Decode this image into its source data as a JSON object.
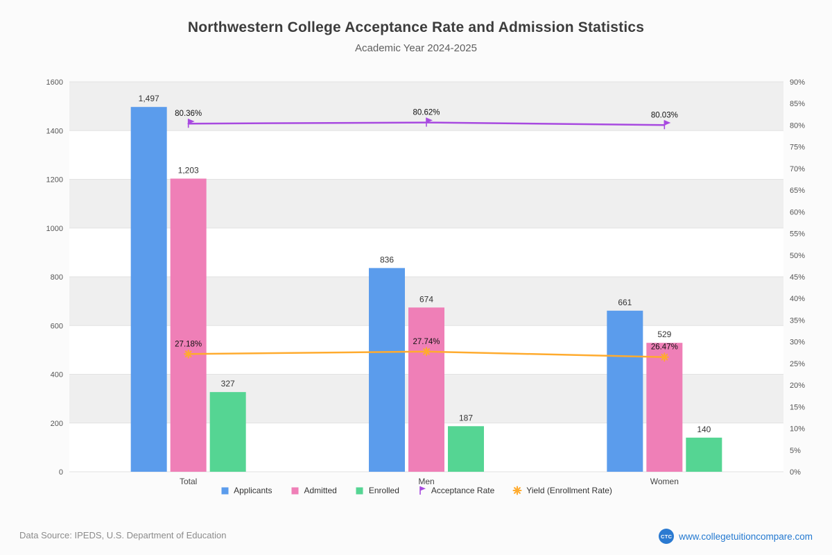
{
  "header": {
    "title": "Northwestern College Acceptance Rate and Admission Statistics",
    "subtitle": "Academic Year 2024-2025"
  },
  "chart_data": {
    "type": "bar+line",
    "categories": [
      "Total",
      "Men",
      "Women"
    ],
    "bar_series": [
      {
        "name": "Applicants",
        "color": "#5b9cec",
        "values": [
          1497,
          836,
          661
        ],
        "labels": [
          "1,497",
          "836",
          "661"
        ]
      },
      {
        "name": "Admitted",
        "color": "#ef7fb7",
        "values": [
          1203,
          674,
          529
        ],
        "labels": [
          "1,203",
          "674",
          "529"
        ]
      },
      {
        "name": "Enrolled",
        "color": "#55d593",
        "values": [
          327,
          187,
          140
        ],
        "labels": [
          "327",
          "187",
          "140"
        ]
      }
    ],
    "line_series": [
      {
        "name": "Acceptance Rate",
        "color": "#a84ae0",
        "marker": "flag",
        "values": [
          80.36,
          80.62,
          80.03
        ],
        "labels": [
          "80.36%",
          "80.62%",
          "80.03%"
        ]
      },
      {
        "name": "Yield (Enrollment Rate)",
        "color": "#ffab2e",
        "marker": "star",
        "values": [
          27.18,
          27.74,
          26.47
        ],
        "labels": [
          "27.18%",
          "27.74%",
          "26.47%"
        ]
      }
    ],
    "left_axis": {
      "min": 0,
      "max": 1600,
      "step": 200,
      "tick_labels": [
        "0",
        "200",
        "400",
        "600",
        "800",
        "1000",
        "1200",
        "1400",
        "1600"
      ]
    },
    "right_axis": {
      "min": 0,
      "max": 90,
      "step": 5,
      "tick_labels": [
        "0%",
        "5%",
        "10%",
        "15%",
        "20%",
        "25%",
        "30%",
        "35%",
        "40%",
        "45%",
        "50%",
        "55%",
        "60%",
        "65%",
        "70%",
        "75%",
        "80%",
        "85%",
        "90%"
      ]
    },
    "grid": "horizontal alternating bands",
    "band_colors": {
      "light": "#ffffff",
      "shaded": "#efefef",
      "line": "#e2e2e2"
    },
    "legend_position": "bottom"
  },
  "legend": {
    "items": [
      {
        "label": "Applicants",
        "type": "square",
        "color": "#5b9cec"
      },
      {
        "label": "Admitted",
        "type": "square",
        "color": "#ef7fb7"
      },
      {
        "label": "Enrolled",
        "type": "square",
        "color": "#55d593"
      },
      {
        "label": "Acceptance Rate",
        "type": "flag",
        "color": "#a84ae0"
      },
      {
        "label": "Yield (Enrollment Rate)",
        "type": "star",
        "color": "#ffab2e"
      }
    ]
  },
  "footer": {
    "data_source": "Data Source: IPEDS, U.S. Department of Education",
    "logo_text": "CTC",
    "website": "www.collegetuitioncompare.com"
  }
}
